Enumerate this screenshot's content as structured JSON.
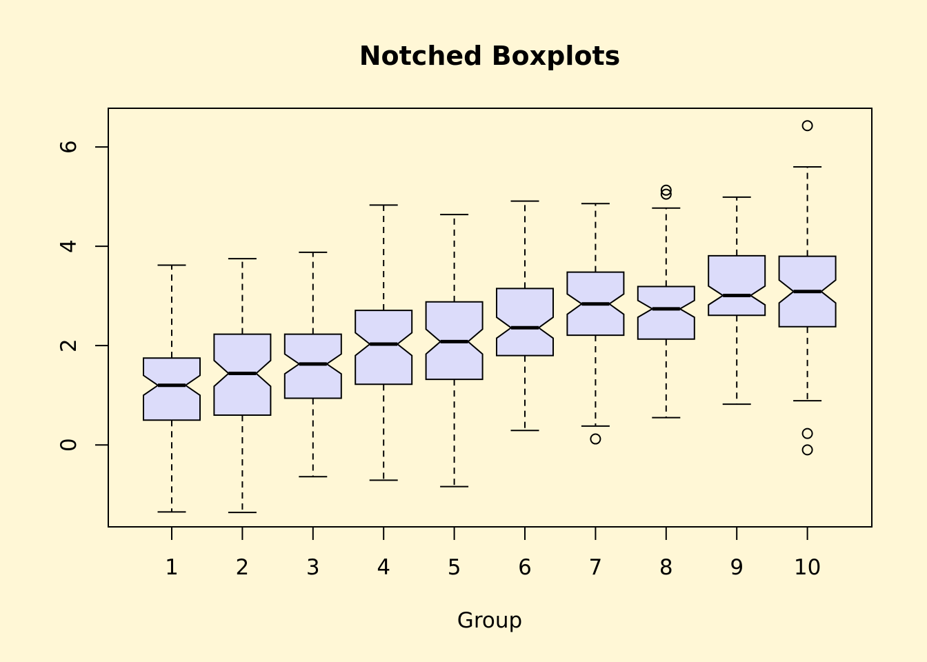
{
  "chart_data": {
    "type": "boxplot",
    "title": "Notched Boxplots",
    "xlabel": "Group",
    "ylabel": "",
    "ylim": [
      -1.65,
      6.78
    ],
    "yticks": [
      0,
      2,
      4,
      6
    ],
    "grid": false,
    "legend": "none",
    "colors": {
      "box_fill": "#DCDCFA",
      "background": "#FFF7D6",
      "line": "#000000"
    },
    "groups": [
      {
        "label": "1",
        "whisker_low": -1.35,
        "q1": 0.5,
        "median": 1.2,
        "q3": 1.75,
        "whisker_high": 3.62,
        "notch_low": 1.0,
        "notch_high": 1.4,
        "outliers": []
      },
      {
        "label": "2",
        "whisker_low": -1.36,
        "q1": 0.6,
        "median": 1.44,
        "q3": 2.23,
        "whisker_high": 3.75,
        "notch_low": 1.18,
        "notch_high": 1.7,
        "outliers": []
      },
      {
        "label": "3",
        "whisker_low": -0.64,
        "q1": 0.94,
        "median": 1.63,
        "q3": 2.23,
        "whisker_high": 3.88,
        "notch_low": 1.43,
        "notch_high": 1.83,
        "outliers": []
      },
      {
        "label": "4",
        "whisker_low": -0.71,
        "q1": 1.22,
        "median": 2.03,
        "q3": 2.71,
        "whisker_high": 4.83,
        "notch_low": 1.8,
        "notch_high": 2.26,
        "outliers": []
      },
      {
        "label": "5",
        "whisker_low": -0.84,
        "q1": 1.32,
        "median": 2.08,
        "q3": 2.88,
        "whisker_high": 4.64,
        "notch_low": 1.83,
        "notch_high": 2.33,
        "outliers": []
      },
      {
        "label": "6",
        "whisker_low": 0.29,
        "q1": 1.8,
        "median": 2.36,
        "q3": 3.15,
        "whisker_high": 4.91,
        "notch_low": 2.15,
        "notch_high": 2.57,
        "outliers": []
      },
      {
        "label": "7",
        "whisker_low": 0.38,
        "q1": 2.21,
        "median": 2.84,
        "q3": 3.48,
        "whisker_high": 4.86,
        "notch_low": 2.63,
        "notch_high": 3.04,
        "outliers": [
          0.12
        ]
      },
      {
        "label": "8",
        "whisker_low": 0.55,
        "q1": 2.13,
        "median": 2.74,
        "q3": 3.19,
        "whisker_high": 4.77,
        "notch_low": 2.57,
        "notch_high": 2.91,
        "outliers": [
          5.05,
          5.13
        ]
      },
      {
        "label": "9",
        "whisker_low": 0.82,
        "q1": 2.61,
        "median": 3.01,
        "q3": 3.81,
        "whisker_high": 4.99,
        "notch_low": 2.82,
        "notch_high": 3.2,
        "outliers": []
      },
      {
        "label": "10",
        "whisker_low": 0.89,
        "q1": 2.38,
        "median": 3.09,
        "q3": 3.8,
        "whisker_high": 5.6,
        "notch_low": 2.86,
        "notch_high": 3.32,
        "outliers": [
          6.43,
          0.23,
          -0.1
        ]
      }
    ]
  }
}
